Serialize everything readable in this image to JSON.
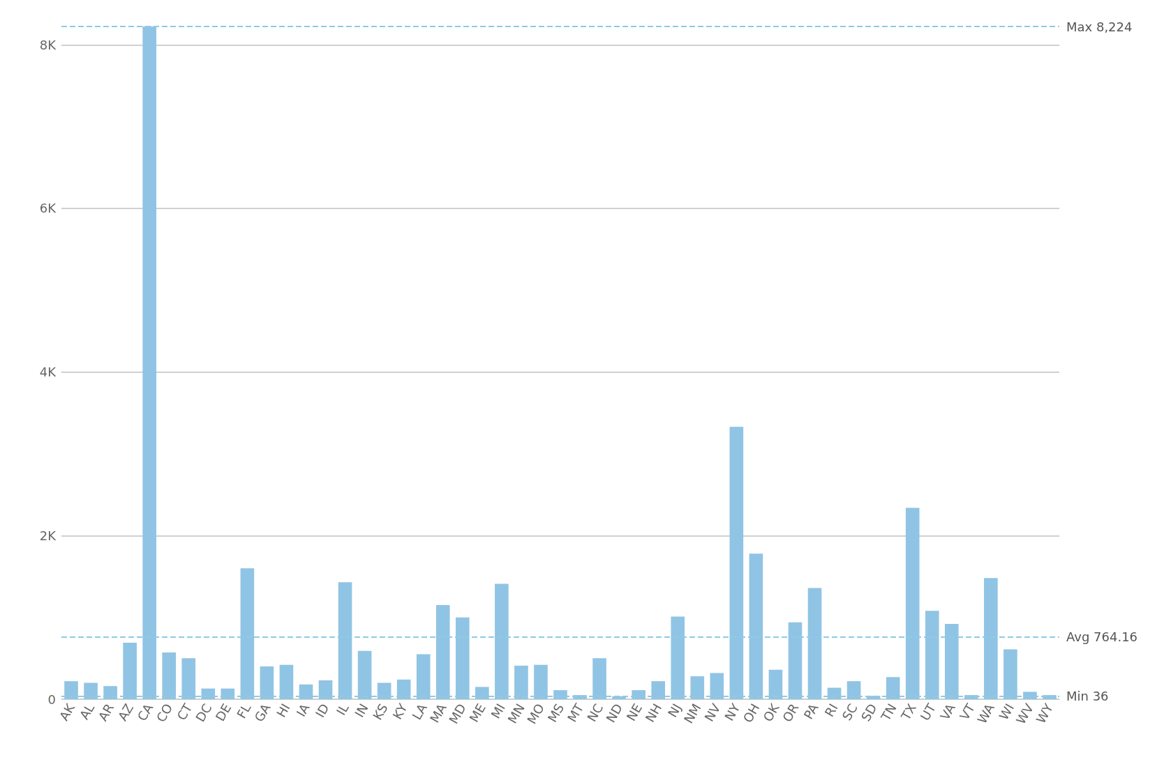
{
  "chart_data": {
    "type": "bar",
    "categories": [
      "AK",
      "AL",
      "AR",
      "AZ",
      "CA",
      "CO",
      "CT",
      "DC",
      "DE",
      "FL",
      "GA",
      "HI",
      "IA",
      "ID",
      "IL",
      "IN",
      "KS",
      "KY",
      "LA",
      "MA",
      "MD",
      "ME",
      "MI",
      "MN",
      "MO",
      "MS",
      "MT",
      "NC",
      "ND",
      "NE",
      "NH",
      "NJ",
      "NM",
      "NV",
      "NY",
      "OH",
      "OK",
      "OR",
      "PA",
      "RI",
      "SC",
      "SD",
      "TN",
      "TX",
      "UT",
      "VA",
      "VT",
      "WA",
      "WI",
      "WV",
      "WY"
    ],
    "values": [
      220,
      200,
      160,
      690,
      8224,
      570,
      500,
      130,
      130,
      1600,
      400,
      420,
      180,
      230,
      1430,
      590,
      200,
      240,
      550,
      1150,
      1000,
      150,
      1410,
      410,
      420,
      110,
      50,
      500,
      36,
      110,
      220,
      1010,
      280,
      320,
      3330,
      1780,
      360,
      940,
      1360,
      140,
      220,
      40,
      270,
      2340,
      1080,
      920,
      50,
      1480,
      610,
      90,
      50
    ],
    "color": "#90c4e4",
    "ylim": [
      0,
      8224
    ],
    "yticks": [
      {
        "value": 0,
        "label": "0"
      },
      {
        "value": 2000,
        "label": "2K"
      },
      {
        "value": 4000,
        "label": "4K"
      },
      {
        "value": 6000,
        "label": "6K"
      },
      {
        "value": 8000,
        "label": "8K"
      }
    ],
    "grid": "y",
    "ref_lines": [
      {
        "axis": "y",
        "value": 8224,
        "label": "Max 8,224",
        "color": "#8ecae6",
        "line_style": "dashed"
      },
      {
        "axis": "y",
        "value": 764.16,
        "label": "Avg 764.16",
        "color": "#8ecae6",
        "line_style": "dashed"
      },
      {
        "axis": "y",
        "value": 36,
        "label": "Min 36",
        "color": "#8ecae6",
        "line_style": "dashed"
      }
    ]
  }
}
